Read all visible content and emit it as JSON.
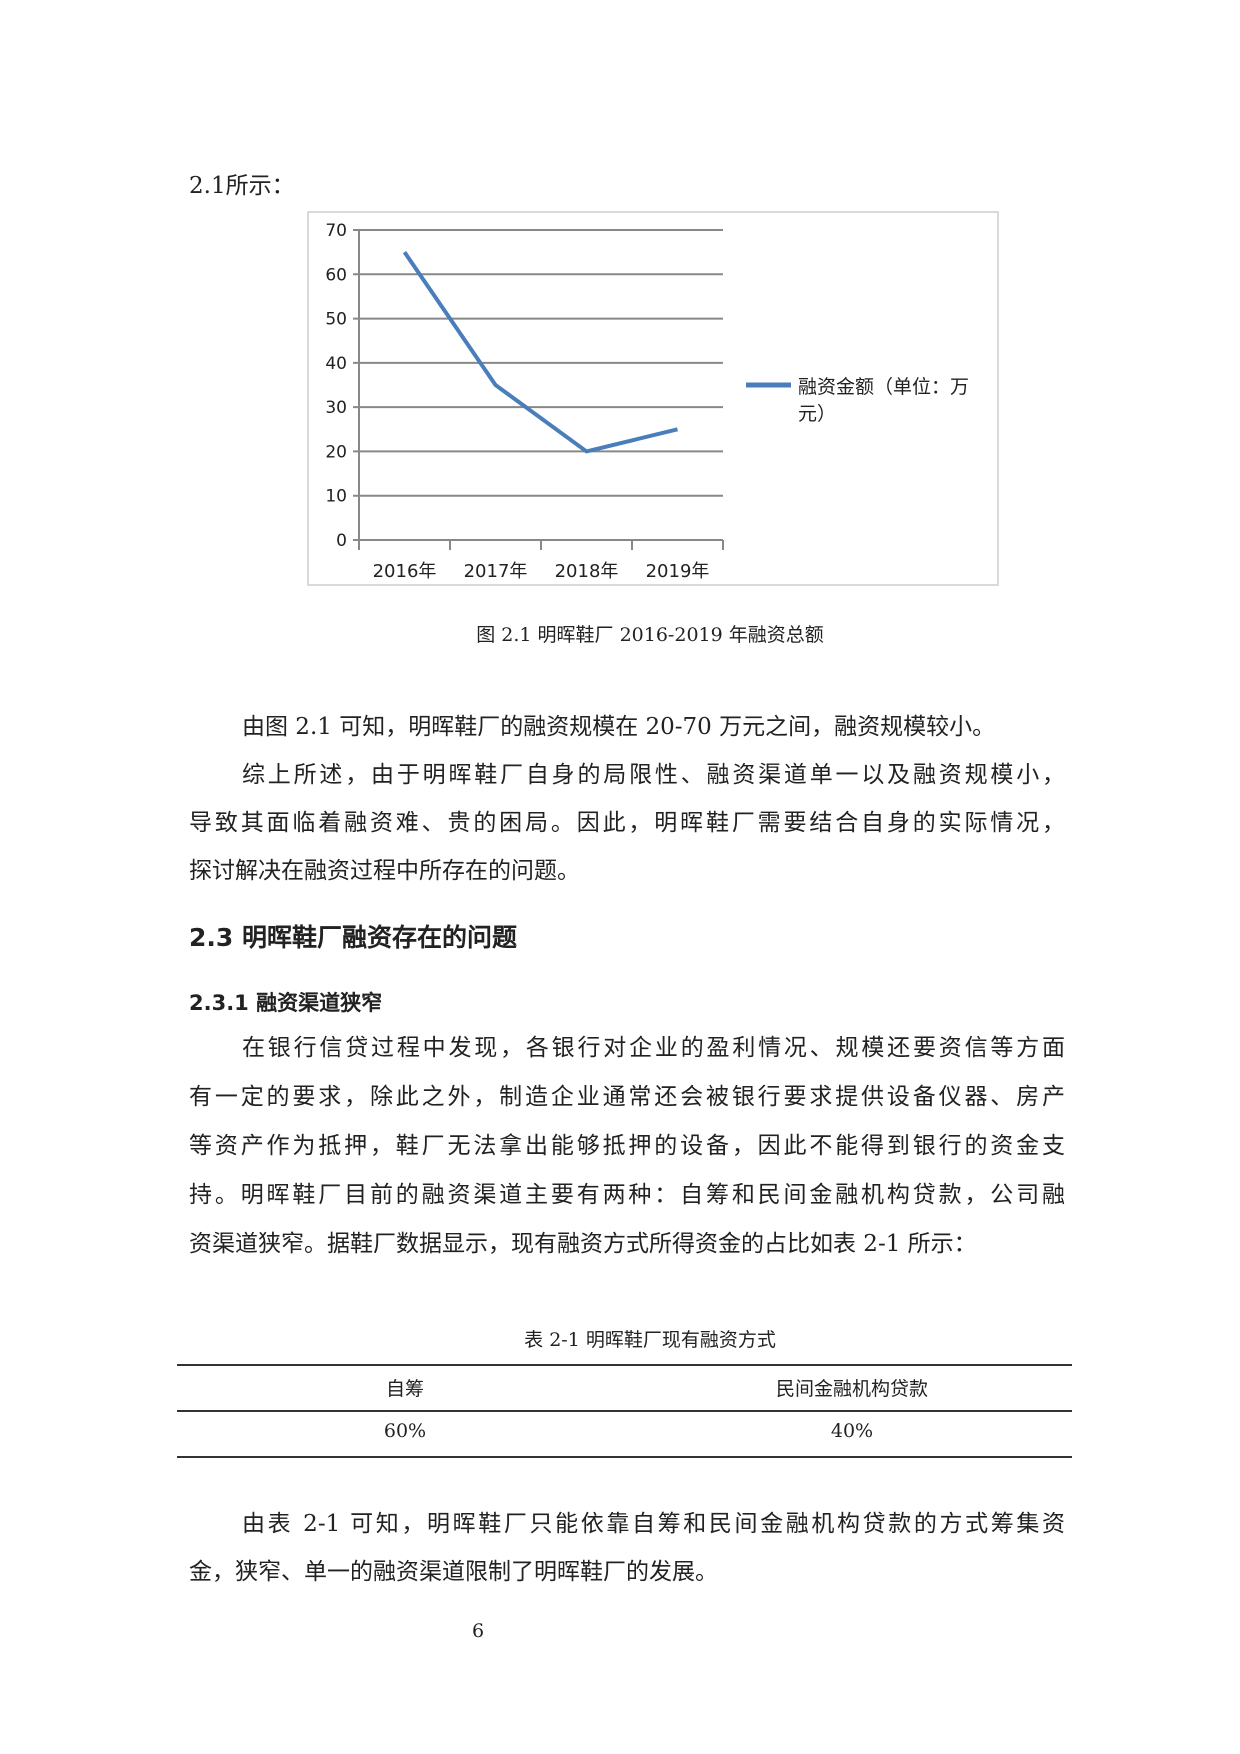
{
  "intro_fragment": "2.1所示：",
  "chart_data": {
    "type": "line",
    "categories": [
      "2016年",
      "2017年",
      "2018年",
      "2019年"
    ],
    "series": [
      {
        "name": "融资金额（单位：万元）",
        "values": [
          65,
          35,
          20,
          25
        ],
        "color": "#4a7ebb"
      }
    ],
    "yticks": [
      0,
      10,
      20,
      30,
      40,
      50,
      60,
      70
    ],
    "ylim": [
      0,
      70
    ],
    "grid": true,
    "legend": "right",
    "legend_lines": [
      "融资金额（单位：万",
      "元）"
    ]
  },
  "figure_caption": "图 2.1  明晖鞋厂 2016-2019 年融资总额",
  "para1": [
    "由图 2.1 可知，明晖鞋厂的融资规模在 20-70 万元之间，融资规模较小。"
  ],
  "para2": [
    "综上所述，由于明晖鞋厂自身的局限性、融资渠道单一以及融资规模小，",
    "导致其面临着融资难、贵的困局。因此，明晖鞋厂需要结合自身的实际情况，",
    "探讨解决在融资过程中所存在的问题。"
  ],
  "heading_2_3": "2.3 明晖鞋厂融资存在的问题",
  "heading_2_3_1": "2.3.1 融资渠道狭窄",
  "para3": [
    "在银行信贷过程中发现，各银行对企业的盈利情况、规模还要资信等方面",
    "有一定的要求，除此之外，制造企业通常还会被银行要求提供设备仪器、房产",
    "等资产作为抵押，鞋厂无法拿出能够抵押的设备，因此不能得到银行的资金支",
    "持。明晖鞋厂目前的融资渠道主要有两种：自筹和民间金融机构贷款，公司融",
    "资渠道狭窄。据鞋厂数据显示，现有融资方式所得资金的占比如表 2-1 所示："
  ],
  "table": {
    "caption": "表 2-1 明晖鞋厂现有融资方式",
    "headers": [
      "自筹",
      "民间金融机构贷款"
    ],
    "rows": [
      [
        "60%",
        "40%"
      ]
    ]
  },
  "para4": [
    "由表 2-1 可知，明晖鞋厂只能依靠自筹和民间金融机构贷款的方式筹集资",
    "金，狭窄、单一的融资渠道限制了明晖鞋厂的发展。"
  ],
  "page_number": "6"
}
